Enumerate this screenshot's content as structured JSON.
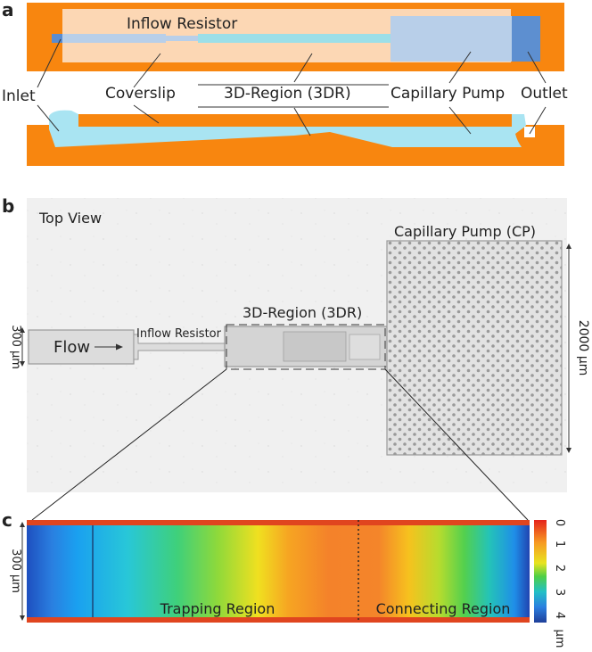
{
  "panel_a": {
    "letter": "a",
    "labels": {
      "inflow_resistor": "Inflow Resistor",
      "inlet": "Inlet",
      "coverslip": "Coverslip",
      "region_3d": "3D-Region (3DR)",
      "capillary_pump": "Capillary Pump",
      "outlet": "Outlet"
    },
    "colors": {
      "substrate": "#f8860f",
      "coverslip": "#fcd7b4",
      "liquid": "#a9e4f2",
      "channel": "#b8cfe9",
      "outlet": "#5d8fd0"
    }
  },
  "panel_b": {
    "letter": "b",
    "labels": {
      "top_view": "Top View",
      "capillary_pump": "Capillary Pump (CP)",
      "region_3d": "3D-Region (3DR)",
      "inflow_resistor": "Inflow Resistor",
      "flow": "Flow",
      "width": "300 µm",
      "height": "2000 µm"
    }
  },
  "panel_c": {
    "letter": "c",
    "labels": {
      "trapping": "Trapping Region",
      "connecting": "Connecting Region",
      "width": "300 µm"
    },
    "colorbar": {
      "ticks": [
        "0",
        "1",
        "2",
        "3",
        "4"
      ],
      "unit": "µm",
      "colors": [
        "#d7191c",
        "#fdae61",
        "#a6d96a",
        "#1a9641",
        "#2b83ba",
        "#1f3f99"
      ]
    }
  }
}
